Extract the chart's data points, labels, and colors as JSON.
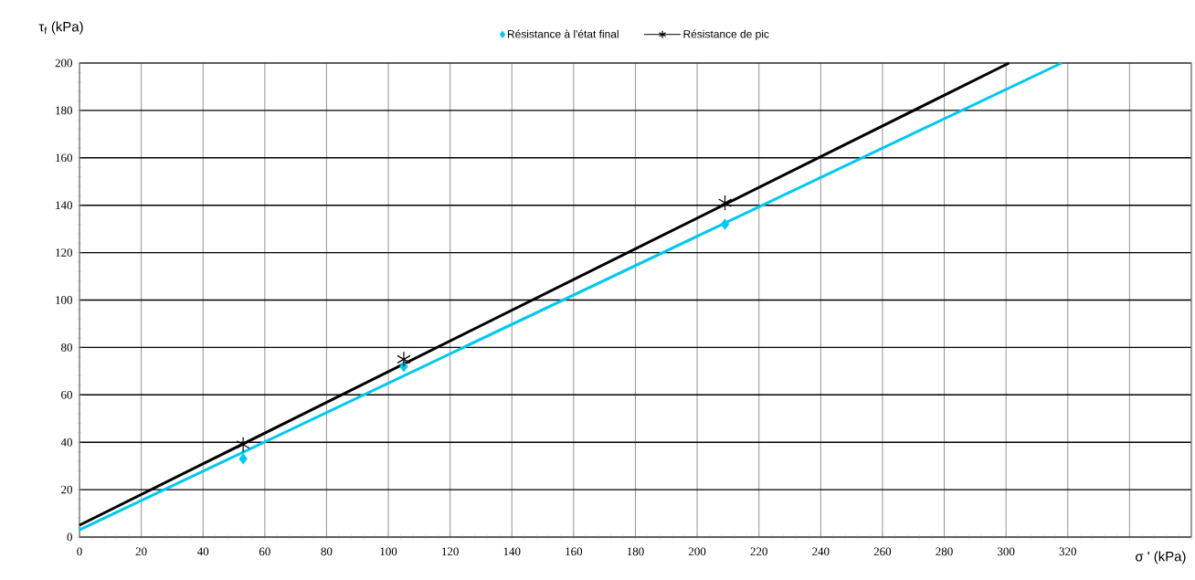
{
  "chart_data": {
    "type": "scatter",
    "xlabel": "σ ' (kPa)",
    "ylabel": "τ$_{f}$ (kPa)",
    "xlim": [
      0,
      360
    ],
    "ylim": [
      0,
      200
    ],
    "xticks": [
      0,
      20,
      40,
      60,
      80,
      100,
      120,
      140,
      160,
      180,
      200,
      220,
      240,
      260,
      280,
      300,
      320,
      {
        "value": 340,
        "label": null
      },
      {
        "value": 360,
        "label": null
      }
    ],
    "yticks": [
      0,
      20,
      40,
      60,
      80,
      100,
      120,
      140,
      160,
      180,
      200
    ],
    "grid": true,
    "legend": "top",
    "series": [
      {
        "name": "Résistance à l'état final",
        "marker": "diamond",
        "color": "#00c8f0",
        "x": [
          53,
          105,
          209
        ],
        "values": [
          33,
          72,
          132
        ]
      },
      {
        "name": "Résistance de pic",
        "marker": "cross",
        "color": "#000000",
        "x": [
          53,
          105,
          209
        ],
        "values": [
          39,
          75,
          141
        ]
      },
      {
        "type": "line",
        "marker": "none",
        "color": "#00c8f0",
        "x": [
          0,
          318
        ],
        "values": [
          3,
          200
        ]
      },
      {
        "type": "line",
        "marker": "none",
        "color": "#000000",
        "x": [
          0,
          301
        ],
        "values": [
          5,
          200
        ]
      }
    ]
  }
}
